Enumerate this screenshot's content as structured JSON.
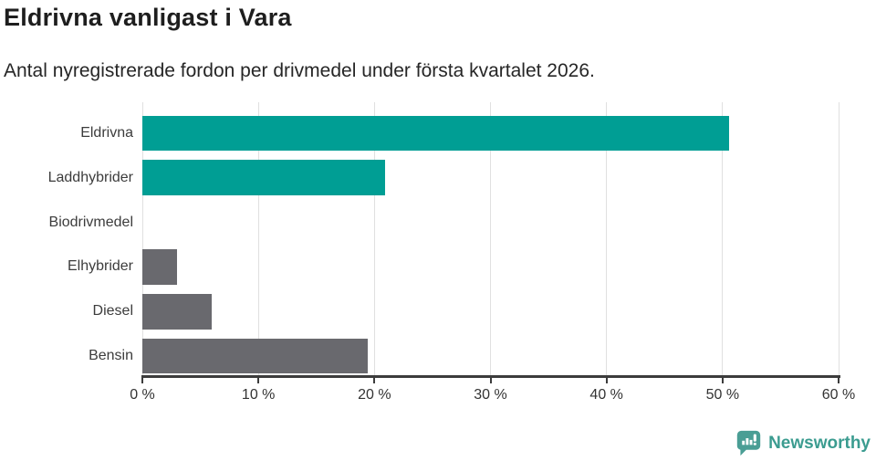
{
  "chart": {
    "title": "Eldrivna vanligast i Vara",
    "subtitle": "Antal nyregistrerade fordon per drivmedel under första kvartalet 2026."
  },
  "chart_data": {
    "type": "bar",
    "orientation": "horizontal",
    "title": "Eldrivna vanligast i Vara",
    "subtitle": "Antal nyregistrerade fordon per drivmedel under första kvartalet 2026.",
    "categories": [
      "Eldrivna",
      "Laddhybrider",
      "Biodrivmedel",
      "Elhybrider",
      "Diesel",
      "Bensin"
    ],
    "values": [
      50.6,
      20.9,
      0,
      3.0,
      6.0,
      19.4
    ],
    "unit": "%",
    "bar_colors": [
      "#009e94",
      "#009e94",
      "#69696e",
      "#69696e",
      "#69696e",
      "#69696e"
    ],
    "xlim": [
      0,
      60
    ],
    "x_tick_values": [
      0,
      10,
      20,
      30,
      40,
      50,
      60
    ],
    "x_tick_labels": [
      "0 %",
      "10 %",
      "20 %",
      "30 %",
      "40 %",
      "50 %",
      "60 %"
    ],
    "grid": true,
    "legend": "none",
    "gridline_color": "#e0e0e0",
    "axis_color": "#3c3c3c"
  },
  "footer": {
    "brand": "Newsworthy",
    "brand_color": "#3b9c90",
    "logo_color": "#4a9e95",
    "logo_icon": "speech-bubble-bar-chart-icon"
  }
}
